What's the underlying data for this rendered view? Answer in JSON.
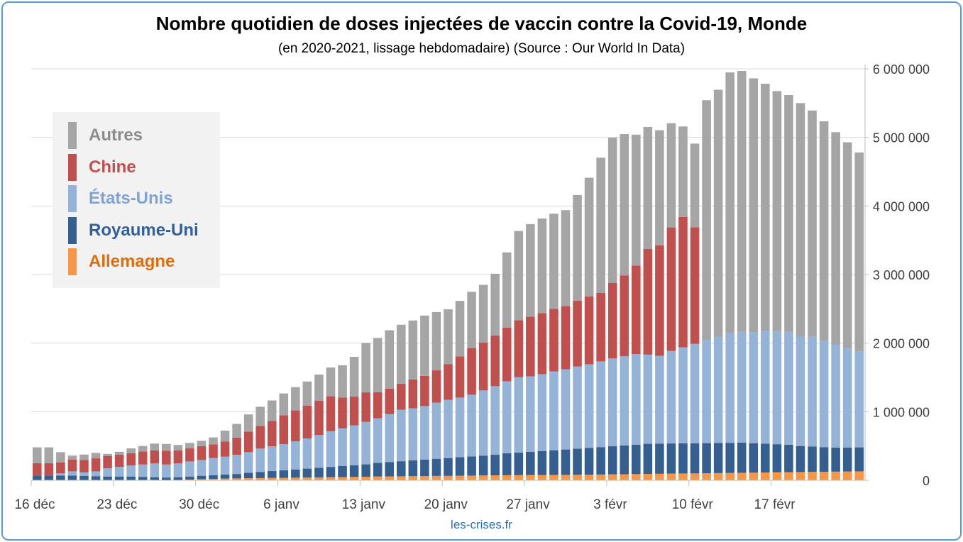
{
  "chart_data": {
    "type": "bar",
    "stacked": true,
    "title": "Nombre quotidien de doses injectées de vaccin contre la Covid-19, Monde",
    "subtitle": "(en 2020-2021, lissage hebdomadaire) (Source : Our World In Data)",
    "source_label": "les-crises.fr",
    "ylim": [
      0,
      6000000
    ],
    "y_ticks": [
      {
        "value": 0,
        "label": "0"
      },
      {
        "value": 1000000,
        "label": "1 000 000"
      },
      {
        "value": 2000000,
        "label": "2 000 000"
      },
      {
        "value": 3000000,
        "label": "3 000 000"
      },
      {
        "value": 4000000,
        "label": "4 000 000"
      },
      {
        "value": 5000000,
        "label": "5 000 000"
      },
      {
        "value": 6000000,
        "label": "6 000 000"
      }
    ],
    "grid": true,
    "legend_position": "top-left",
    "x_ticks": [
      {
        "index": 0,
        "label": "16 déc"
      },
      {
        "index": 7,
        "label": "23 déc"
      },
      {
        "index": 14,
        "label": "30 déc"
      },
      {
        "index": 21,
        "label": "6 janv"
      },
      {
        "index": 28,
        "label": "13 janv"
      },
      {
        "index": 35,
        "label": "20 janv"
      },
      {
        "index": 42,
        "label": "27 janv"
      },
      {
        "index": 49,
        "label": "3 févr"
      },
      {
        "index": 56,
        "label": "10 févr"
      },
      {
        "index": 63,
        "label": "17 févr"
      }
    ],
    "legend": [
      {
        "key": "other",
        "label": "Autres",
        "color": "#a5a5a5",
        "text_color": "#8c8c8c"
      },
      {
        "key": "china",
        "label": "Chine",
        "color": "#c0504d",
        "text_color": "#c0504d"
      },
      {
        "key": "usa",
        "label": "États-Unis",
        "color": "#95b3d7",
        "text_color": "#7fa4d3"
      },
      {
        "key": "uk",
        "label": "Royaume-Uni",
        "color": "#355f91",
        "text_color": "#2f5f9e"
      },
      {
        "key": "germany",
        "label": "Allemagne",
        "color": "#f79646",
        "text_color": "#e36c0a"
      }
    ],
    "series": [
      {
        "key": "germany",
        "name": "Allemagne",
        "color": "#f79646",
        "values": [
          0,
          0,
          0,
          0,
          0,
          0,
          0,
          0,
          0,
          0,
          0,
          0,
          5000,
          10000,
          16000,
          20000,
          24000,
          27000,
          30000,
          32000,
          34000,
          36000,
          38000,
          40000,
          42000,
          45000,
          47000,
          50000,
          52000,
          55000,
          57000,
          58000,
          60000,
          62000,
          63000,
          64000,
          66000,
          68000,
          70000,
          72000,
          74000,
          75000,
          76000,
          77000,
          78000,
          79000,
          80000,
          82000,
          84000,
          86000,
          88000,
          90000,
          92000,
          95000,
          97000,
          99000,
          100000,
          102000,
          105000,
          107000,
          109000,
          111000,
          113000,
          116000,
          118000,
          120000,
          122000,
          124000,
          126000,
          128000,
          130000
        ]
      },
      {
        "key": "uk",
        "name": "Royaume-Uni",
        "color": "#355f91",
        "values": [
          70000,
          70000,
          70000,
          70000,
          65000,
          60000,
          55000,
          55000,
          55000,
          50000,
          45000,
          40000,
          40000,
          45000,
          50000,
          55000,
          60000,
          65000,
          80000,
          90000,
          100000,
          110000,
          120000,
          130000,
          140000,
          150000,
          160000,
          170000,
          180000,
          200000,
          210000,
          220000,
          230000,
          240000,
          250000,
          260000,
          270000,
          280000,
          290000,
          300000,
          320000,
          330000,
          340000,
          350000,
          360000,
          370000,
          380000,
          390000,
          400000,
          410000,
          420000,
          430000,
          440000,
          440000,
          440000,
          440000,
          440000,
          440000,
          440000,
          440000,
          440000,
          430000,
          420000,
          410000,
          400000,
          380000,
          370000,
          360000,
          350000,
          350000,
          350000
        ]
      },
      {
        "key": "usa",
        "name": "États-Unis",
        "color": "#95b3d7",
        "values": [
          0,
          0,
          30000,
          60000,
          50000,
          70000,
          120000,
          140000,
          160000,
          180000,
          200000,
          190000,
          200000,
          220000,
          230000,
          250000,
          260000,
          280000,
          300000,
          340000,
          360000,
          380000,
          410000,
          440000,
          480000,
          520000,
          550000,
          580000,
          620000,
          650000,
          700000,
          750000,
          760000,
          780000,
          820000,
          850000,
          870000,
          900000,
          950000,
          1000000,
          1050000,
          1100000,
          1100000,
          1120000,
          1150000,
          1170000,
          1200000,
          1220000,
          1250000,
          1280000,
          1300000,
          1320000,
          1300000,
          1280000,
          1350000,
          1400000,
          1450000,
          1500000,
          1550000,
          1600000,
          1620000,
          1620000,
          1650000,
          1650000,
          1650000,
          1600000,
          1600000,
          1550000,
          1500000,
          1450000,
          1400000
        ]
      },
      {
        "key": "china",
        "name": "Chine",
        "color": "#c0504d",
        "values": [
          180000,
          180000,
          160000,
          170000,
          180000,
          190000,
          180000,
          180000,
          180000,
          190000,
          190000,
          200000,
          190000,
          190000,
          200000,
          200000,
          220000,
          250000,
          300000,
          330000,
          370000,
          420000,
          450000,
          480000,
          500000,
          510000,
          450000,
          420000,
          430000,
          380000,
          370000,
          380000,
          420000,
          440000,
          470000,
          520000,
          600000,
          680000,
          700000,
          740000,
          780000,
          830000,
          870000,
          890000,
          910000,
          920000,
          960000,
          990000,
          1000000,
          1100000,
          1180000,
          1290000,
          1540000,
          1610000,
          1800000,
          1900000,
          1700000,
          0,
          0,
          0,
          0,
          0,
          0,
          0,
          0,
          0,
          0,
          0,
          0,
          0,
          0
        ]
      },
      {
        "key": "other",
        "name": "Autres",
        "color": "#a5a5a5",
        "values": [
          230000,
          230000,
          150000,
          60000,
          80000,
          80000,
          30000,
          40000,
          70000,
          80000,
          100000,
          100000,
          80000,
          80000,
          80000,
          100000,
          160000,
          200000,
          250000,
          280000,
          300000,
          320000,
          340000,
          350000,
          380000,
          420000,
          470000,
          580000,
          720000,
          790000,
          850000,
          860000,
          860000,
          880000,
          850000,
          800000,
          810000,
          820000,
          840000,
          900000,
          1100000,
          1300000,
          1350000,
          1380000,
          1390000,
          1400000,
          1540000,
          1730000,
          1970000,
          2120000,
          2060000,
          1910000,
          1780000,
          1680000,
          1520000,
          1320000,
          1220000,
          3500000,
          3600000,
          3800000,
          3800000,
          3700000,
          3600000,
          3500000,
          3450000,
          3400000,
          3300000,
          3200000,
          3100000,
          3000000,
          2900000
        ]
      }
    ]
  }
}
